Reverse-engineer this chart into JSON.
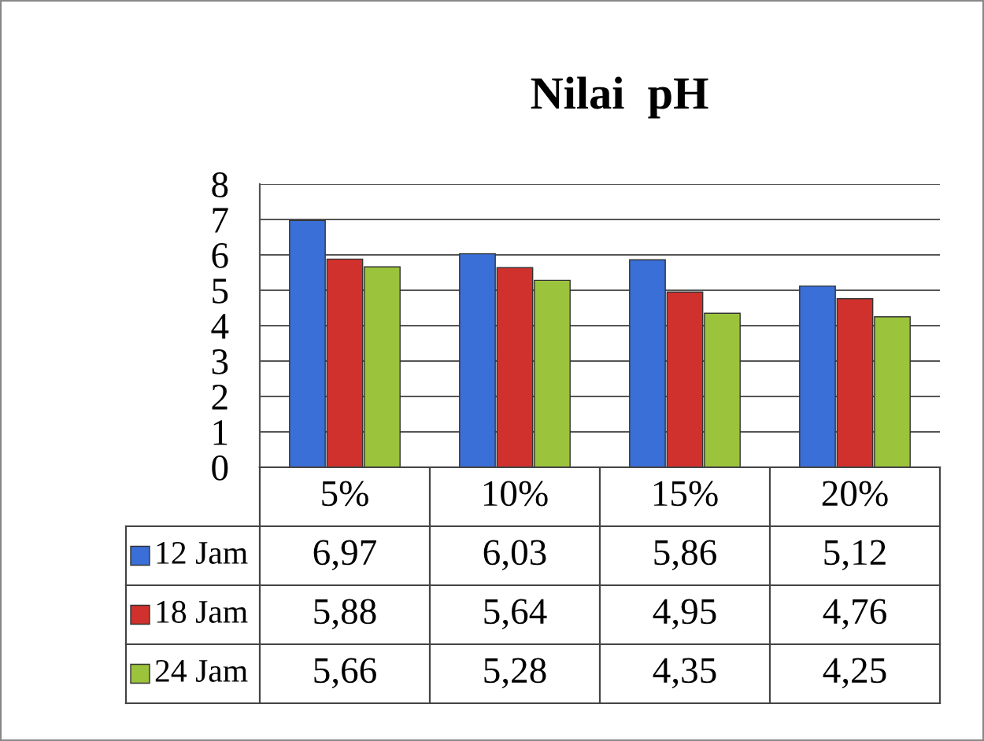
{
  "chart_data": {
    "type": "bar",
    "title": "Nilai  pH",
    "categories": [
      "5%",
      "10%",
      "15%",
      "20%"
    ],
    "series": [
      {
        "name": "12 Jam",
        "color": "#3a6fd8",
        "values": [
          6.97,
          6.03,
          5.86,
          5.12
        ],
        "value_labels": [
          "6,97",
          "6,03",
          "5,86",
          "5,12"
        ]
      },
      {
        "name": "18 Jam",
        "color": "#d0312d",
        "values": [
          5.88,
          5.64,
          4.95,
          4.76
        ],
        "value_labels": [
          "5,88",
          "5,64",
          "4,95",
          "4,76"
        ]
      },
      {
        "name": "24 Jam",
        "color": "#9bc33c",
        "values": [
          5.66,
          5.28,
          4.35,
          4.25
        ],
        "value_labels": [
          "5,66",
          "5,28",
          "4,35",
          "4,25"
        ]
      }
    ],
    "ylim": [
      0,
      8
    ],
    "yticks": [
      0,
      1,
      2,
      3,
      4,
      5,
      6,
      7,
      8
    ],
    "grid": "y",
    "legend": "bottom"
  }
}
